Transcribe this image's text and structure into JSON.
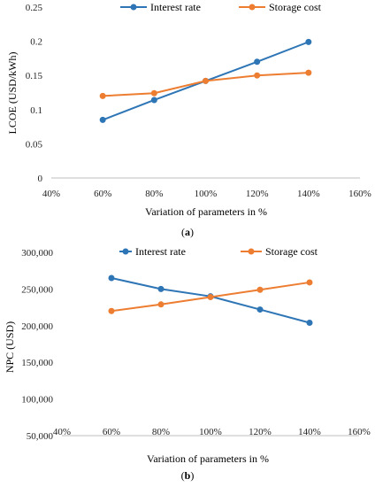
{
  "chart_data": [
    {
      "type": "line",
      "caption_prefix": "(",
      "caption_letter": "a",
      "caption_suffix": ")",
      "xlabel": "Variation of parameters in %",
      "ylabel": "LCOE (USD/kWh)",
      "x_ticks": [
        "40%",
        "60%",
        "80%",
        "100%",
        "120%",
        "140%",
        "160%"
      ],
      "y_ticks": [
        "0",
        "0.05",
        "0.1",
        "0.15",
        "0.2",
        "0.25"
      ],
      "xlim": [
        40,
        160
      ],
      "ylim": [
        0,
        0.25
      ],
      "grid": false,
      "legend": "top",
      "x": [
        60,
        80,
        100,
        120,
        140
      ],
      "series": [
        {
          "name": "Interest rate",
          "color": "#2e75b6",
          "values": [
            0.085,
            0.114,
            0.142,
            0.17,
            0.199
          ]
        },
        {
          "name": "Storage cost",
          "color": "#ed7d31",
          "values": [
            0.12,
            0.124,
            0.142,
            0.15,
            0.154
          ]
        }
      ]
    },
    {
      "type": "line",
      "caption_prefix": "(",
      "caption_letter": "b",
      "caption_suffix": ")",
      "xlabel": "Variation of parameters in %",
      "ylabel": "NPC (USD)",
      "x_ticks": [
        "40%",
        "60%",
        "80%",
        "100%",
        "120%",
        "140%",
        "160%"
      ],
      "y_ticks": [
        "50,000",
        "100,000",
        "150,000",
        "200,000",
        "250,000",
        "300,000"
      ],
      "xlim": [
        40,
        160
      ],
      "ylim": [
        50000,
        300000
      ],
      "grid": false,
      "legend": "top",
      "x": [
        60,
        80,
        100,
        120,
        140
      ],
      "series": [
        {
          "name": "Interest rate",
          "color": "#2e75b6",
          "values": [
            265000,
            250000,
            240000,
            222000,
            204000
          ]
        },
        {
          "name": "Storage cost",
          "color": "#ed7d31",
          "values": [
            220000,
            229000,
            239000,
            249000,
            259000
          ]
        }
      ]
    }
  ]
}
